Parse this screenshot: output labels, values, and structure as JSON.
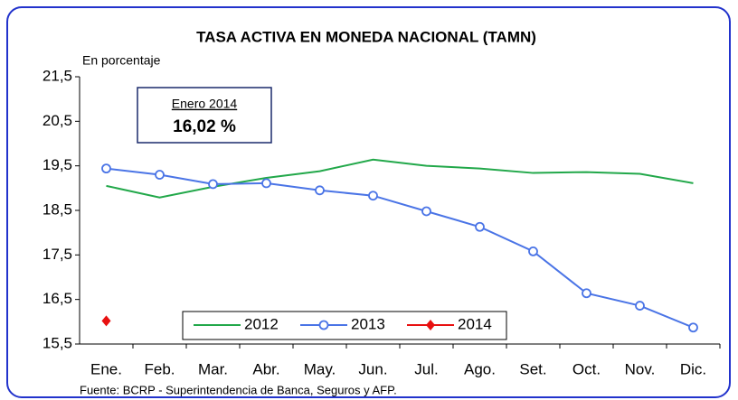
{
  "chart_data": {
    "type": "line",
    "title": "TASA ACTIVA EN MONEDA NACIONAL (TAMN)",
    "y_axis_label": "En  porcentaje",
    "source": "Fuente: BCRP - Superintendencia de Banca, Seguros y AFP.",
    "annotation": {
      "title": "Enero 2014",
      "text": "16,02 %"
    },
    "categories": [
      "Ene.",
      "Feb.",
      "Mar.",
      "Abr.",
      "May.",
      "Jun.",
      "Jul.",
      "Ago.",
      "Set.",
      "Oct.",
      "Nov.",
      "Dic."
    ],
    "series": [
      {
        "name": "2012",
        "color": "#22a84a",
        "marker": "none",
        "values": [
          19.05,
          18.79,
          19.03,
          19.23,
          19.38,
          19.64,
          19.5,
          19.44,
          19.34,
          19.36,
          19.32,
          19.11
        ]
      },
      {
        "name": "2013",
        "color": "#4a74e6",
        "marker": "circle",
        "values": [
          19.44,
          19.3,
          19.09,
          19.11,
          18.95,
          18.83,
          18.48,
          18.13,
          17.58,
          16.64,
          16.36,
          15.87
        ]
      },
      {
        "name": "2014",
        "color": "#e81010",
        "marker": "diamond",
        "values": [
          16.02,
          null,
          null,
          null,
          null,
          null,
          null,
          null,
          null,
          null,
          null,
          null
        ]
      }
    ],
    "ylim": [
      15.5,
      21.5
    ],
    "yticks": [
      {
        "value": 15.5,
        "label": "15,5"
      },
      {
        "value": 16.5,
        "label": "16,5"
      },
      {
        "value": 17.5,
        "label": "17,5"
      },
      {
        "value": 18.5,
        "label": "18,5"
      },
      {
        "value": 19.5,
        "label": "19,5"
      },
      {
        "value": 20.5,
        "label": "20,5"
      },
      {
        "value": 21.5,
        "label": "21,5"
      }
    ],
    "grid": false
  }
}
